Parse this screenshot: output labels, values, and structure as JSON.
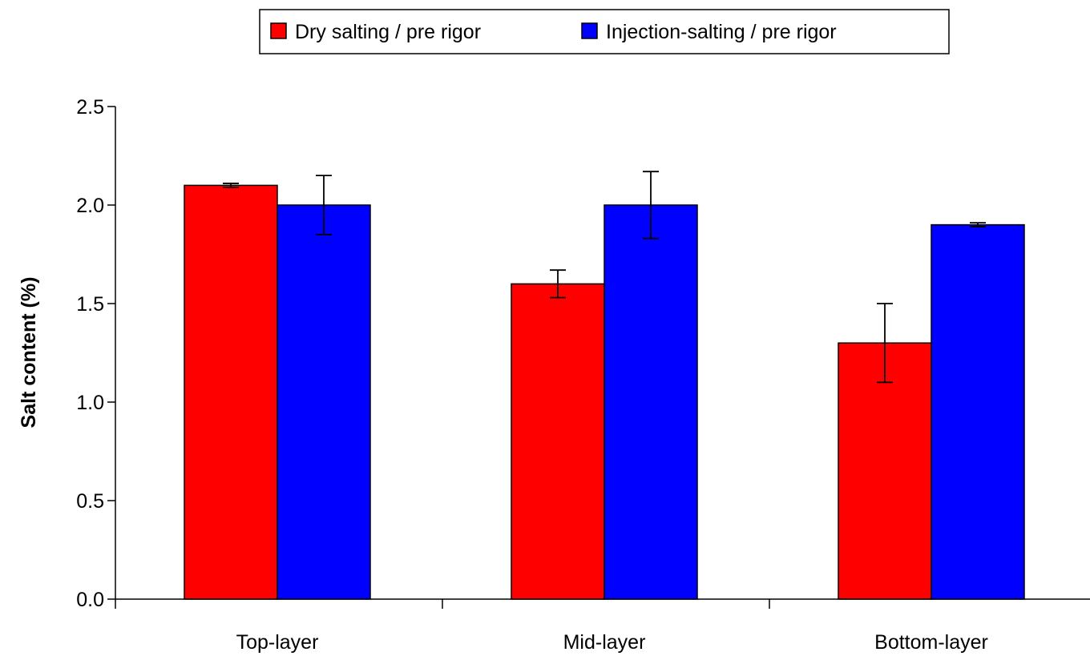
{
  "chart_data": {
    "type": "bar",
    "categories": [
      "Top-layer",
      "Mid-layer",
      "Bottom-layer"
    ],
    "series": [
      {
        "name": "Dry salting / pre rigor",
        "color": "#ff0000",
        "values": [
          2.1,
          1.6,
          1.3
        ],
        "error_low": [
          2.09,
          1.53,
          1.1
        ],
        "error_high": [
          2.11,
          1.67,
          1.5
        ]
      },
      {
        "name": "Injection-salting / pre rigor",
        "color": "#0000ff",
        "values": [
          2.0,
          2.0,
          1.9
        ],
        "error_low": [
          1.85,
          1.83,
          1.89
        ],
        "error_high": [
          2.15,
          2.17,
          1.91
        ]
      }
    ],
    "xlabel": "",
    "ylabel": "Salt content (%)",
    "ylim": [
      0,
      2.5
    ],
    "yticks": [
      "0.0",
      "0.5",
      "1.0",
      "1.5",
      "2.0",
      "2.5"
    ],
    "grid": false,
    "legend_position": "top-center"
  }
}
